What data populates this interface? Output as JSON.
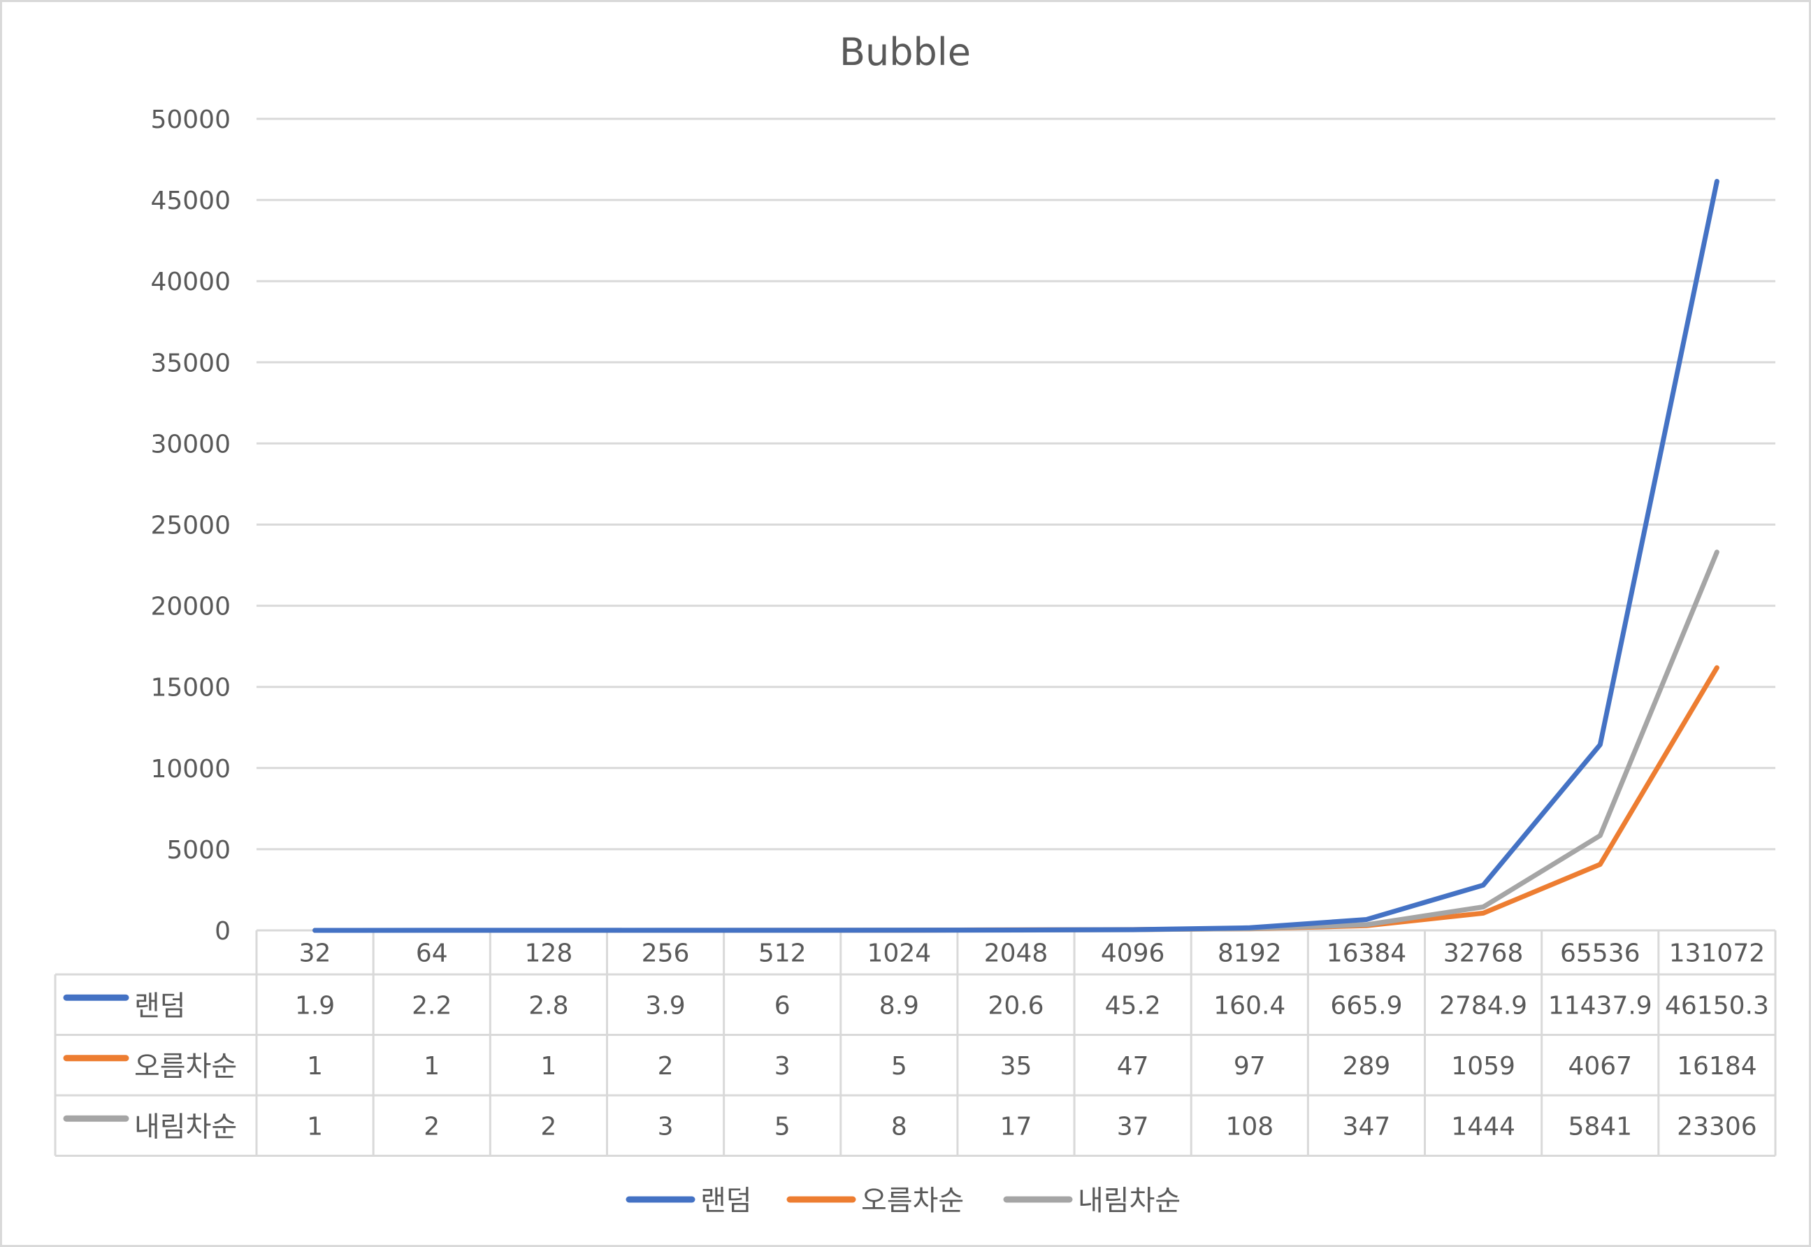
{
  "chart_data": {
    "type": "line",
    "title": "Bubble",
    "xlabel": "",
    "ylabel": "",
    "categories": [
      "32",
      "64",
      "128",
      "256",
      "512",
      "1024",
      "2048",
      "4096",
      "8192",
      "16384",
      "32768",
      "65536",
      "131072"
    ],
    "ylim": [
      0,
      50000
    ],
    "yticks": [
      "0",
      "5000",
      "10000",
      "15000",
      "20000",
      "25000",
      "30000",
      "35000",
      "40000",
      "45000",
      "50000"
    ],
    "grid": true,
    "legend_position": "bottom",
    "data_table": true,
    "series": [
      {
        "name": "랜덤",
        "color": "#4472C4",
        "values": [
          1.9,
          2.2,
          2.8,
          3.9,
          6,
          8.9,
          20.6,
          45.2,
          160.4,
          665.9,
          2784.9,
          11437.9,
          46150.3
        ],
        "labels": [
          "1.9",
          "2.2",
          "2.8",
          "3.9",
          "6",
          "8.9",
          "20.6",
          "45.2",
          "160.4",
          "665.9",
          "2784.9",
          "11437.9",
          "46150.3"
        ]
      },
      {
        "name": "오름차순",
        "color": "#ED7D31",
        "values": [
          1,
          1,
          1,
          2,
          3,
          5,
          35,
          47,
          97,
          289,
          1059,
          4067,
          16184
        ],
        "labels": [
          "1",
          "1",
          "1",
          "2",
          "3",
          "5",
          "35",
          "47",
          "97",
          "289",
          "1059",
          "4067",
          "16184"
        ]
      },
      {
        "name": "내림차순",
        "color": "#A5A5A5",
        "values": [
          1,
          2,
          2,
          3,
          5,
          8,
          17,
          37,
          108,
          347,
          1444,
          5841,
          23306
        ],
        "labels": [
          "1",
          "2",
          "2",
          "3",
          "5",
          "8",
          "17",
          "37",
          "108",
          "347",
          "1444",
          "5841",
          "23306"
        ]
      }
    ]
  }
}
